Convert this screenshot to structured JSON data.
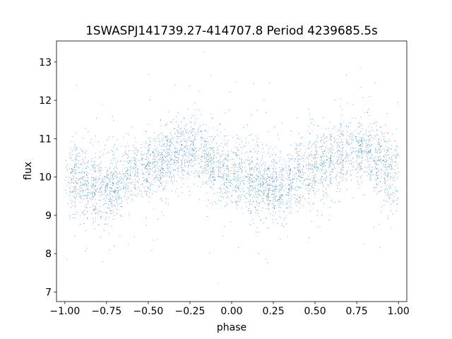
{
  "chart_data": {
    "type": "scatter",
    "title": "1SWASPJ141739.27-414707.8 Period 4239685.5s",
    "xlabel": "phase",
    "ylabel": "flux",
    "xlim": [
      -1.05,
      1.05
    ],
    "ylim": [
      6.75,
      13.55
    ],
    "xticks": [
      -1.0,
      -0.75,
      -0.5,
      -0.25,
      0.0,
      0.25,
      0.5,
      0.75,
      1.0
    ],
    "xtick_labels": [
      "−1.00",
      "−0.75",
      "−0.50",
      "−0.25",
      "0.00",
      "0.25",
      "0.50",
      "0.75",
      "1.00"
    ],
    "yticks": [
      7,
      8,
      9,
      10,
      11,
      12,
      13
    ],
    "ytick_labels": [
      "7",
      "8",
      "9",
      "10",
      "11",
      "12",
      "13"
    ],
    "grid": false,
    "legend": "none",
    "marker_color": "#1f77b4",
    "series": [
      {
        "x_range": [
          -1.0,
          1.0
        ],
        "description_profile": [
          {
            "x": -1.0,
            "y": 10.0
          },
          {
            "x": -0.75,
            "y": 9.7
          },
          {
            "x": -0.5,
            "y": 10.3
          },
          {
            "x": -0.25,
            "y": 10.7
          },
          {
            "x": 0.0,
            "y": 10.1
          },
          {
            "x": 0.25,
            "y": 9.7
          },
          {
            "x": 0.5,
            "y": 10.3
          },
          {
            "x": 0.75,
            "y": 10.7
          },
          {
            "x": 1.0,
            "y": 10.1
          }
        ]
      }
    ]
  }
}
